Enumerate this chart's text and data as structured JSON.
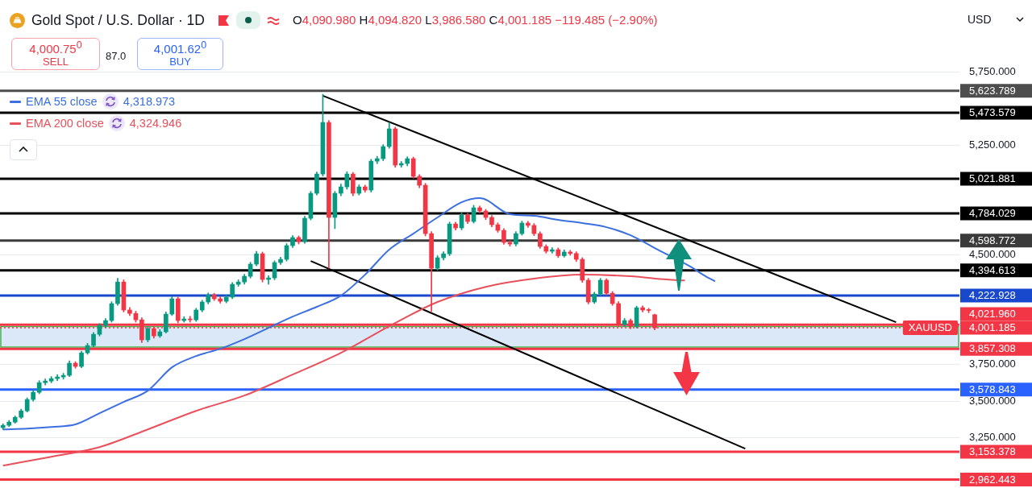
{
  "chart_data": {
    "type": "candlestick",
    "title": "Gold Spot / U.S. Dollar · 1D",
    "annotations": [
      "O4,090.980 H4,094.820 L3,986.580 C4,001.185 −119.485 (−2.90%)",
      "4,000.75$^{0}$",
      "SELL",
      "87.0",
      "4,001.62$^{0}$",
      "BUY",
      "USD",
      "4,318.973",
      "4,324.946",
      {
        "text": "XAUUSD",
        "y": 4001.185
      }
    ],
    "categories": [
      null,
      null,
      null,
      null,
      null,
      null,
      null,
      null,
      null,
      null,
      null,
      null,
      null,
      null,
      null,
      null,
      null,
      null,
      null,
      null,
      null,
      null,
      null,
      null,
      null,
      null,
      null,
      null,
      null,
      null,
      null,
      null,
      null,
      null,
      null,
      null,
      null,
      null,
      null,
      null,
      null,
      null,
      null,
      null,
      null,
      null,
      null,
      null,
      null,
      null,
      null,
      null,
      null,
      null,
      null,
      null,
      null,
      null,
      null,
      null,
      null,
      null,
      null,
      null,
      null,
      null,
      null,
      null,
      null,
      null,
      null,
      null,
      null,
      null,
      null,
      null,
      null,
      null,
      null,
      null,
      null,
      null,
      null,
      null,
      null,
      null,
      null,
      null,
      null,
      null,
      null,
      null,
      null,
      null,
      null,
      null,
      null,
      null,
      null,
      null,
      null,
      null,
      null,
      null,
      null,
      null,
      null,
      null,
      null,
      null,
      null,
      null,
      null,
      null,
      null,
      null,
      null,
      null,
      null,
      null,
      null,
      null,
      null,
      null,
      null,
      null,
      null,
      null,
      null,
      null,
      null,
      null,
      null,
      null,
      null,
      null,
      null,
      null,
      null,
      null,
      null,
      null,
      null,
      null,
      null,
      null,
      null,
      null,
      null,
      null,
      null,
      null,
      null,
      null,
      null,
      null,
      null,
      null,
      null
    ],
    "ohlc": [
      [
        3318,
        3345,
        3305,
        3334
      ],
      [
        3334,
        3368,
        3325,
        3356
      ],
      [
        3356,
        3398,
        3348,
        3389
      ],
      [
        3389,
        3445,
        3380,
        3433
      ],
      [
        3433,
        3522,
        3425,
        3511
      ],
      [
        3511,
        3575,
        3500,
        3560
      ],
      [
        3560,
        3640,
        3550,
        3626
      ],
      [
        3626,
        3652,
        3610,
        3637
      ],
      [
        3637,
        3668,
        3625,
        3654
      ],
      [
        3654,
        3680,
        3640,
        3665
      ],
      [
        3665,
        3690,
        3650,
        3676
      ],
      [
        3676,
        3775,
        3668,
        3759
      ],
      [
        3759,
        3770,
        3725,
        3737
      ],
      [
        3737,
        3842,
        3728,
        3830
      ],
      [
        3830,
        3895,
        3820,
        3880
      ],
      [
        3880,
        3970,
        3870,
        3957
      ],
      [
        3957,
        4030,
        3945,
        4018
      ],
      [
        4018,
        4065,
        4005,
        4051
      ],
      [
        4051,
        4180,
        4040,
        4167
      ],
      [
        4167,
        4340,
        4155,
        4315
      ],
      [
        4315,
        4330,
        4110,
        4123
      ],
      [
        4123,
        4140,
        4085,
        4100
      ],
      [
        4100,
        4115,
        4040,
        4056
      ],
      [
        4056,
        4070,
        3900,
        3919
      ],
      [
        3919,
        4010,
        3905,
        3996
      ],
      [
        3996,
        4008,
        3930,
        3946
      ],
      [
        3946,
        3990,
        3935,
        3974
      ],
      [
        3974,
        4110,
        3965,
        4095
      ],
      [
        4095,
        4215,
        4085,
        4200
      ],
      [
        4200,
        4212,
        4035,
        4051
      ],
      [
        4051,
        4078,
        4040,
        4062
      ],
      [
        4062,
        4080,
        4040,
        4056
      ],
      [
        4056,
        4135,
        4045,
        4123
      ],
      [
        4123,
        4190,
        4110,
        4178
      ],
      [
        4178,
        4240,
        4165,
        4227
      ],
      [
        4227,
        4238,
        4188,
        4200
      ],
      [
        4200,
        4215,
        4170,
        4183
      ],
      [
        4183,
        4225,
        4172,
        4211
      ],
      [
        4211,
        4312,
        4200,
        4299
      ],
      [
        4299,
        4330,
        4285,
        4315
      ],
      [
        4315,
        4368,
        4300,
        4354
      ],
      [
        4354,
        4450,
        4342,
        4437
      ],
      [
        4437,
        4525,
        4425,
        4508
      ],
      [
        4508,
        4520,
        4315,
        4332
      ],
      [
        4332,
        4358,
        4300,
        4343
      ],
      [
        4343,
        4460,
        4330,
        4448
      ],
      [
        4448,
        4485,
        4435,
        4470
      ],
      [
        4470,
        4578,
        4458,
        4564
      ],
      [
        4564,
        4632,
        4550,
        4619
      ],
      [
        4619,
        4630,
        4575,
        4591
      ],
      [
        4591,
        4765,
        4580,
        4751
      ],
      [
        4751,
        4935,
        4740,
        4922
      ],
      [
        4922,
        5068,
        4910,
        5054
      ],
      [
        5054,
        5600,
        5040,
        5407
      ],
      [
        5407,
        5420,
        4409,
        4757
      ],
      [
        4757,
        4935,
        4680,
        4922
      ],
      [
        4922,
        4985,
        4905,
        4966
      ],
      [
        4966,
        5070,
        4950,
        5054
      ],
      [
        5054,
        5065,
        4905,
        4922
      ],
      [
        4922,
        4980,
        4910,
        4966
      ],
      [
        4966,
        4978,
        4930,
        4944
      ],
      [
        4944,
        5155,
        4930,
        5142
      ],
      [
        5142,
        5175,
        5125,
        5159
      ],
      [
        5159,
        5255,
        5145,
        5242
      ],
      [
        5242,
        5407,
        5230,
        5363
      ],
      [
        5363,
        5375,
        5100,
        5115
      ],
      [
        5115,
        5140,
        5100,
        5126
      ],
      [
        5126,
        5172,
        5110,
        5159
      ],
      [
        5159,
        5170,
        5025,
        5038
      ],
      [
        5038,
        5050,
        4960,
        4977
      ],
      [
        4977,
        4990,
        4630,
        4646
      ],
      [
        4646,
        4660,
        4112,
        4409
      ],
      [
        4409,
        4495,
        4395,
        4481
      ],
      [
        4481,
        4522,
        4465,
        4508
      ],
      [
        4508,
        4725,
        4495,
        4712
      ],
      [
        4712,
        4725,
        4670,
        4685
      ],
      [
        4685,
        4790,
        4672,
        4773
      ],
      [
        4773,
        4785,
        4715,
        4729
      ],
      [
        4729,
        4840,
        4718,
        4823
      ],
      [
        4823,
        4835,
        4788,
        4801
      ],
      [
        4801,
        4812,
        4742,
        4757
      ],
      [
        4757,
        4770,
        4692,
        4707
      ],
      [
        4707,
        4720,
        4655,
        4668
      ],
      [
        4668,
        4680,
        4572,
        4586
      ],
      [
        4586,
        4598,
        4560,
        4575
      ],
      [
        4575,
        4660,
        4562,
        4646
      ],
      [
        4646,
        4732,
        4635,
        4718
      ],
      [
        4718,
        4730,
        4688,
        4702
      ],
      [
        4702,
        4715,
        4632,
        4646
      ],
      [
        4646,
        4658,
        4545,
        4558
      ],
      [
        4558,
        4570,
        4512,
        4525
      ],
      [
        4525,
        4550,
        4512,
        4536
      ],
      [
        4536,
        4548,
        4482,
        4495
      ],
      [
        4495,
        4535,
        4485,
        4520
      ],
      [
        4520,
        4532,
        4498,
        4510
      ],
      [
        4510,
        4522,
        4455,
        4470
      ],
      [
        4470,
        4482,
        4312,
        4327
      ],
      [
        4327,
        4340,
        4165,
        4178
      ],
      [
        4178,
        4245,
        4168,
        4233
      ],
      [
        4233,
        4340,
        4222,
        4327
      ],
      [
        4327,
        4338,
        4225,
        4238
      ],
      [
        4238,
        4250,
        4155,
        4167
      ],
      [
        4167,
        4180,
        4010,
        4023
      ],
      [
        4023,
        4065,
        4012,
        4051
      ],
      [
        4051,
        4062,
        3995,
        4012
      ],
      [
        4012,
        4150,
        4000,
        4139
      ],
      [
        4139,
        4152,
        4110,
        4123
      ],
      [
        4123,
        4135,
        4105,
        4120.67
      ],
      [
        4090.98,
        4094.82,
        3986.58,
        4001.185
      ],
      null,
      null,
      null,
      null,
      null,
      null,
      null,
      null,
      null,
      null,
      null,
      null,
      null,
      null,
      null,
      null,
      null,
      null,
      null,
      null,
      null,
      null,
      null,
      null,
      null,
      null,
      null,
      null,
      null,
      null,
      null,
      null,
      null,
      null,
      null,
      null,
      null,
      null,
      null,
      null,
      null,
      null,
      null,
      null,
      null,
      null,
      null,
      null,
      null,
      null
    ],
    "series": [
      {
        "name": "EMA 55 close",
        "type": "line",
        "color": "#3c6fe0",
        "values": [
          3306,
          null,
          null,
          null,
          3312,
          null,
          null,
          null,
          3323,
          null,
          null,
          null,
          3340,
          null,
          null,
          null,
          3417,
          null,
          null,
          null,
          3494,
          null,
          null,
          null,
          3571,
          null,
          null,
          null,
          3731,
          null,
          null,
          null,
          3808,
          null,
          null,
          null,
          3858,
          null,
          null,
          null,
          3924,
          null,
          null,
          null,
          4001,
          null,
          null,
          null,
          4078,
          null,
          null,
          null,
          4145,
          null,
          null,
          null,
          4222,
          null,
          null,
          null,
          4365,
          null,
          null,
          null,
          4536,
          null,
          null,
          null,
          4646,
          null,
          null,
          null,
          4757,
          null,
          null,
          null,
          4861,
          null,
          null,
          4889,
          null,
          null,
          null,
          null,
          4779,
          null,
          null,
          null,
          4768,
          null,
          null,
          null,
          4740,
          null,
          null,
          null,
          4718,
          null,
          null,
          null,
          4690,
          null,
          null,
          null,
          4635,
          null,
          null,
          null,
          4547,
          null,
          null,
          null,
          null,
          null,
          4418,
          null,
          4365,
          null,
          4318.973,
          null,
          null,
          null,
          null,
          null,
          null,
          null,
          null,
          null,
          null,
          null,
          null,
          null,
          null,
          null,
          null,
          null,
          null,
          null,
          null,
          null,
          null,
          null,
          null,
          null,
          null,
          null,
          null,
          null,
          null,
          null,
          null,
          null,
          null,
          null,
          null,
          null,
          null,
          null,
          null
        ]
      },
      {
        "name": "EMA 200 close",
        "type": "line",
        "color": "#e8505b",
        "values": [
          3058,
          null,
          null,
          null,
          null,
          null,
          null,
          null,
          3119,
          null,
          null,
          null,
          null,
          null,
          null,
          null,
          3185,
          null,
          null,
          null,
          null,
          null,
          null,
          null,
          3306,
          null,
          null,
          null,
          null,
          null,
          null,
          null,
          3433,
          null,
          null,
          null,
          null,
          null,
          null,
          null,
          3538,
          null,
          null,
          null,
          null,
          null,
          null,
          null,
          3681,
          null,
          null,
          null,
          null,
          null,
          null,
          null,
          3830,
          null,
          null,
          null,
          null,
          null,
          null,
          null,
          4012,
          null,
          null,
          null,
          null,
          null,
          null,
          null,
          4178,
          null,
          null,
          null,
          null,
          null,
          null,
          null,
          4282,
          null,
          null,
          null,
          null,
          null,
          null,
          null,
          4338,
          null,
          null,
          null,
          null,
          null,
          null,
          null,
          4365,
          null,
          null,
          null,
          null,
          null,
          null,
          null,
          4354,
          null,
          null,
          null,
          null,
          null,
          4332,
          null,
          null,
          4324.946,
          null,
          null,
          null,
          null,
          null,
          null,
          null,
          null,
          null,
          null,
          null,
          null,
          null,
          null,
          null,
          null,
          null,
          null,
          null,
          null,
          null,
          null,
          null,
          null,
          null,
          null,
          null,
          null,
          null,
          null,
          null,
          null,
          null,
          null,
          null,
          null,
          null,
          null,
          null,
          null,
          null,
          null,
          null,
          null,
          null
        ]
      },
      {
        "type": "line",
        "color": "#000000",
        "values": [
          null,
          null,
          null,
          null,
          null,
          null,
          null,
          null,
          null,
          null,
          null,
          null,
          null,
          null,
          null,
          null,
          null,
          null,
          null,
          null,
          null,
          null,
          null,
          null,
          null,
          null,
          null,
          null,
          null,
          null,
          null,
          null,
          null,
          null,
          null,
          null,
          null,
          null,
          null,
          null,
          null,
          null,
          null,
          null,
          null,
          null,
          null,
          null,
          null,
          null,
          null,
          null,
          null,
          5590,
          null,
          null,
          null,
          null,
          null,
          null,
          null,
          null,
          null,
          null,
          null,
          null,
          null,
          null,
          null,
          null,
          null,
          null,
          null,
          null,
          null,
          null,
          null,
          null,
          null,
          null,
          null,
          null,
          null,
          null,
          null,
          null,
          null,
          null,
          null,
          null,
          null,
          null,
          null,
          null,
          null,
          null,
          null,
          null,
          null,
          null,
          null,
          null,
          null,
          null,
          null,
          null,
          null,
          null,
          null,
          null,
          null,
          null,
          null,
          null,
          null,
          null,
          null,
          null,
          null,
          null,
          null,
          null,
          null,
          null,
          null,
          null,
          null,
          null,
          null,
          null,
          null,
          null,
          null,
          null,
          null,
          null,
          null,
          null,
          null,
          null,
          null,
          null,
          null,
          null,
          null,
          null,
          null,
          null,
          4040,
          null,
          null,
          null,
          null,
          null,
          null,
          null,
          null,
          null,
          null
        ]
      },
      {
        "type": "line",
        "color": "#000000",
        "values": [
          null,
          null,
          null,
          null,
          null,
          null,
          null,
          null,
          null,
          null,
          null,
          null,
          null,
          null,
          null,
          null,
          null,
          null,
          null,
          null,
          null,
          null,
          null,
          null,
          null,
          null,
          null,
          null,
          null,
          null,
          null,
          null,
          null,
          null,
          null,
          null,
          null,
          null,
          null,
          null,
          null,
          null,
          null,
          null,
          null,
          null,
          null,
          null,
          null,
          null,
          null,
          4459,
          null,
          null,
          null,
          null,
          null,
          null,
          null,
          null,
          null,
          null,
          null,
          null,
          null,
          null,
          null,
          null,
          null,
          null,
          null,
          null,
          null,
          null,
          null,
          null,
          null,
          null,
          null,
          null,
          null,
          null,
          null,
          null,
          null,
          null,
          null,
          null,
          null,
          null,
          null,
          null,
          null,
          null,
          null,
          null,
          null,
          null,
          null,
          null,
          null,
          null,
          null,
          null,
          null,
          null,
          null,
          null,
          null,
          null,
          null,
          null,
          null,
          null,
          null,
          null,
          null,
          null,
          null,
          null,
          null,
          null,
          null,
          3174,
          null,
          null,
          null,
          null,
          null,
          null,
          null,
          null,
          null,
          null,
          null,
          null,
          null,
          null,
          null,
          null,
          null,
          null,
          null,
          null,
          null,
          null,
          null,
          null,
          null,
          null,
          null,
          null,
          null,
          null,
          null,
          null,
          null,
          null,
          null
        ]
      }
    ],
    "ylim": [
      2905,
      6245
    ],
    "yticks": [
      {
        "value": 3250,
        "label": "3,250.000"
      },
      {
        "value": 3500,
        "label": "3,500.000"
      },
      {
        "value": 3750,
        "label": "3,750.000"
      },
      {
        "value": 4500,
        "label": "4,500.000"
      },
      {
        "value": 5250,
        "label": "5,250.000"
      },
      {
        "value": 5750,
        "label": "5,750.000"
      }
    ],
    "ref_lines": [
      {
        "axis": "y",
        "value": 5623.789,
        "label": "5,623.789",
        "color": "#4d4d4d"
      },
      {
        "axis": "y",
        "value": 5473.579,
        "label": "5,473.579",
        "color": "#000000"
      },
      {
        "axis": "y",
        "value": 5021.881,
        "label": "5,021.881",
        "color": "#000000"
      },
      {
        "axis": "y",
        "value": 4784.029,
        "label": "4,784.029",
        "color": "#000000"
      },
      {
        "axis": "y",
        "value": 4598.772,
        "label": "4,598.772",
        "color": "#3a3a3a"
      },
      {
        "axis": "y",
        "value": 4394.613,
        "label": "4,394.613",
        "color": "#000000"
      },
      {
        "axis": "y",
        "value": 4222.928,
        "label": "4,222.928",
        "color": "#1848cc"
      },
      {
        "axis": "y",
        "value": 4021.96,
        "label": "4,021.960",
        "color": "#f23645"
      },
      {
        "axis": "y",
        "value": 4001.185,
        "label": "4,001.185",
        "color": "#f23645",
        "line_style": "dotted"
      },
      {
        "axis": "y",
        "value": 3857.308,
        "label": "3,857.308",
        "color": "#f23645"
      },
      {
        "axis": "y",
        "value": 3578.843,
        "label": "3,578.843",
        "color": "#2962ff"
      },
      {
        "axis": "y",
        "value": 3153.378,
        "label": "3,153.378",
        "color": "#f23645"
      },
      {
        "axis": "y",
        "value": 2962.443,
        "label": "2,962.443",
        "color": "#f23645"
      }
    ],
    "bands": [
      {
        "axis": "y",
        "from": 3870,
        "to": 4010,
        "color": "#dbe8f8"
      }
    ],
    "grid": "y",
    "legend": "top left",
    "tick_labels": "y"
  }
}
